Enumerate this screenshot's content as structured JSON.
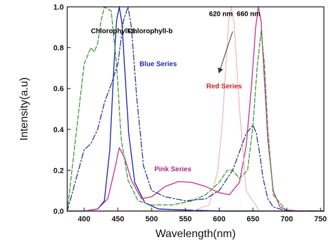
{
  "chart_data": {
    "type": "line",
    "title": "",
    "xlabel": "Wavelength(nm)",
    "ylabel": "Intensity(a.u)",
    "xlim": [
      375,
      755
    ],
    "ylim": [
      0.0,
      1.0
    ],
    "x_ticks": [
      400,
      450,
      500,
      550,
      600,
      650,
      700,
      750
    ],
    "y_ticks": [
      0.0,
      0.2,
      0.4,
      0.6,
      0.8,
      1.0
    ],
    "grid": false,
    "annotations": [
      {
        "id": "chl_a",
        "text": "Chlorophyll-a",
        "x": 410,
        "y": 0.87,
        "color": "#000000"
      },
      {
        "id": "chl_b",
        "text": "Chlorophyll-b",
        "x": 465,
        "y": 0.87,
        "color": "#000000"
      },
      {
        "id": "blue_series",
        "text": "Blue Series",
        "x": 482,
        "y": 0.71,
        "color": "#1f2bb0"
      },
      {
        "id": "red_series",
        "text": "Red Series",
        "x": 581,
        "y": 0.6,
        "color": "#cc1f1f"
      },
      {
        "id": "pink_series",
        "text": "Pink Series",
        "x": 504,
        "y": 0.195,
        "color": "#a32a86"
      },
      {
        "id": "nm620",
        "text": "620 nm",
        "x": 585,
        "y": 0.955,
        "color": "#000000"
      },
      {
        "id": "nm660",
        "text": "660 nm",
        "x": 626,
        "y": 0.955,
        "color": "#000000"
      }
    ],
    "arrow": {
      "from": [
        620,
        0.88
      ],
      "to": [
        600,
        0.68
      ]
    },
    "series": [
      {
        "id": "blue",
        "color": "#1f2bb0",
        "dash": "",
        "x": [
          375,
          400,
          420,
          430,
          438,
          444,
          448,
          452,
          456,
          460,
          466,
          475,
          490,
          510,
          550,
          600,
          650,
          700,
          755
        ],
        "y": [
          0.0,
          0.0,
          0.01,
          0.05,
          0.3,
          0.7,
          0.93,
          1.0,
          0.92,
          0.7,
          0.38,
          0.14,
          0.04,
          0.01,
          0.005,
          0.0,
          0.0,
          0.0,
          0.0
        ]
      },
      {
        "id": "pink",
        "color": "#c43a9a",
        "dash": "",
        "x": [
          375,
          400,
          420,
          435,
          445,
          452,
          460,
          470,
          485,
          500,
          520,
          540,
          560,
          580,
          600,
          615,
          630,
          640,
          648,
          654,
          658,
          662,
          666,
          672,
          680,
          690,
          700,
          720,
          755
        ],
        "y": [
          0.0,
          0.0,
          0.01,
          0.06,
          0.2,
          0.31,
          0.26,
          0.15,
          0.06,
          0.07,
          0.12,
          0.145,
          0.14,
          0.12,
          0.09,
          0.08,
          0.14,
          0.32,
          0.62,
          0.9,
          1.0,
          0.93,
          0.7,
          0.35,
          0.1,
          0.02,
          0.005,
          0.0,
          0.0
        ]
      },
      {
        "id": "red620",
        "color": "#eebfc6",
        "dash": "",
        "x": [
          375,
          560,
          585,
          598,
          605,
          610,
          614,
          618,
          622,
          630,
          640,
          660,
          755
        ],
        "y": [
          0.0,
          0.0,
          0.03,
          0.2,
          0.45,
          0.72,
          0.93,
          1.0,
          0.92,
          0.5,
          0.1,
          0.0,
          0.0
        ]
      },
      {
        "id": "chlorophyll_a",
        "color": "#4c9a3c",
        "dash": "6,3",
        "x": [
          375,
          400,
          410,
          415,
          420,
          425,
          430,
          440,
          448,
          455,
          465,
          480,
          500,
          530,
          560,
          580,
          600,
          612,
          620,
          630,
          642,
          650,
          656,
          662,
          667,
          672,
          680,
          700,
          755
        ],
        "y": [
          0.0,
          0.72,
          0.8,
          0.78,
          0.82,
          0.93,
          1.0,
          0.98,
          0.72,
          0.35,
          0.15,
          0.05,
          0.03,
          0.03,
          0.05,
          0.08,
          0.14,
          0.2,
          0.2,
          0.16,
          0.2,
          0.42,
          0.7,
          0.88,
          0.72,
          0.4,
          0.08,
          0.0,
          0.0
        ]
      },
      {
        "id": "chlorophyll_b",
        "color": "#3a3f8f",
        "dash": "8,3,2,3",
        "x": [
          375,
          400,
          410,
          420,
          430,
          440,
          450,
          458,
          465,
          470,
          478,
          488,
          500,
          520,
          550,
          580,
          600,
          620,
          640,
          650,
          655,
          660,
          665,
          672,
          680,
          700,
          755
        ],
        "y": [
          0.0,
          0.3,
          0.33,
          0.4,
          0.53,
          0.62,
          0.72,
          0.93,
          1.0,
          0.9,
          0.55,
          0.22,
          0.1,
          0.07,
          0.05,
          0.06,
          0.1,
          0.2,
          0.38,
          0.42,
          0.38,
          0.28,
          0.16,
          0.06,
          0.02,
          0.0,
          0.0
        ]
      }
    ]
  }
}
